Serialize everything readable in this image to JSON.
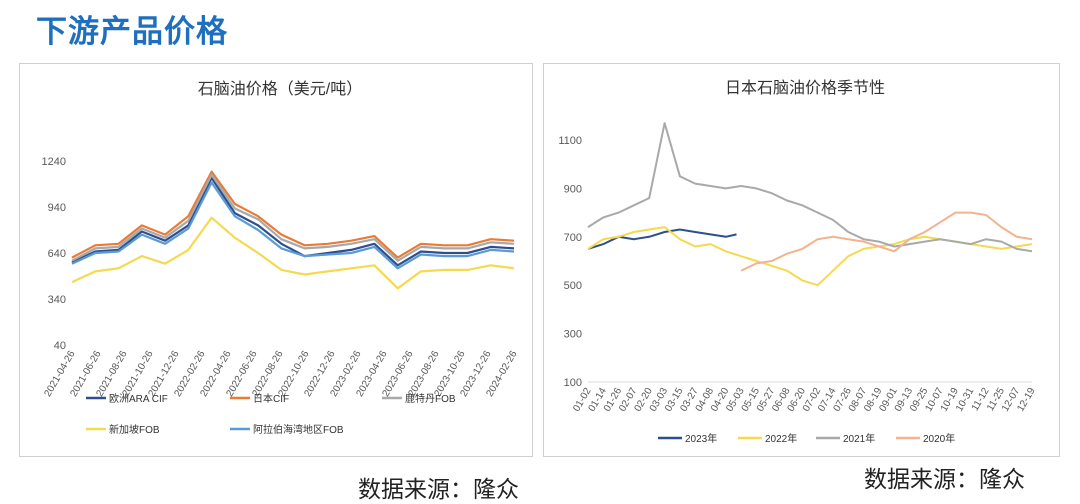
{
  "page": {
    "title": "下游产品价格",
    "source_left": "数据来源：隆众",
    "source_right": "数据来源：隆众"
  },
  "chart_data": [
    {
      "type": "line",
      "title": "石脑油价格（美元/吨）",
      "xlabel": "",
      "ylabel": "",
      "ylim": [
        40,
        1240
      ],
      "yticks": [
        40,
        340,
        640,
        940,
        1240
      ],
      "x_ticks": [
        "2021-04-26",
        "2021-06-26",
        "2021-08-26",
        "2021-10-26",
        "2021-12-26",
        "2022-02-26",
        "2022-04-26",
        "2022-06-26",
        "2022-08-26",
        "2022-10-26",
        "2022-12-26",
        "2023-02-26",
        "2023-04-26",
        "2023-06-26",
        "2023-08-26",
        "2023-10-26",
        "2023-12-26",
        "2024-02-26"
      ],
      "x": [
        "2021-04-26",
        "2021-06-26",
        "2021-08-26",
        "2021-10-26",
        "2021-12-26",
        "2022-02-26",
        "2022-03-10",
        "2022-04-26",
        "2022-06-26",
        "2022-08-26",
        "2022-10-26",
        "2022-12-26",
        "2023-02-26",
        "2023-04-26",
        "2023-06-26",
        "2023-08-26",
        "2023-10-26",
        "2023-12-26",
        "2024-02-26",
        "2024-04-26"
      ],
      "grid": false,
      "legend_position": "bottom",
      "series": [
        {
          "name": "欧洲ARA CIF",
          "color": "#2e4f8f",
          "values": [
            580,
            650,
            660,
            780,
            720,
            820,
            1130,
            900,
            820,
            700,
            620,
            640,
            660,
            700,
            560,
            650,
            640,
            640,
            680,
            670
          ]
        },
        {
          "name": "日本CIF",
          "color": "#e97b35",
          "values": [
            610,
            690,
            700,
            820,
            760,
            880,
            1170,
            960,
            880,
            760,
            690,
            700,
            720,
            750,
            610,
            700,
            690,
            690,
            730,
            720
          ]
        },
        {
          "name": "鹿特丹FOB",
          "color": "#a9a9a9",
          "values": [
            590,
            670,
            680,
            800,
            740,
            850,
            1150,
            930,
            860,
            730,
            670,
            680,
            700,
            730,
            590,
            680,
            670,
            670,
            710,
            700
          ]
        },
        {
          "name": "新加坡FOB",
          "color": "#f5d94e",
          "values": [
            450,
            520,
            540,
            620,
            570,
            660,
            870,
            740,
            640,
            530,
            500,
            520,
            540,
            560,
            410,
            520,
            530,
            530,
            560,
            540
          ]
        },
        {
          "name": "阿拉伯海湾地区FOB",
          "color": "#5b9bd5",
          "values": [
            570,
            640,
            650,
            760,
            700,
            800,
            1100,
            880,
            790,
            670,
            620,
            630,
            640,
            680,
            540,
            630,
            620,
            620,
            660,
            650
          ]
        }
      ]
    },
    {
      "type": "line",
      "title": "日本石脑油价格季节性",
      "xlabel": "",
      "ylabel": "",
      "ylim": [
        100,
        1100
      ],
      "yticks": [
        100,
        300,
        500,
        700,
        900,
        1100
      ],
      "x_ticks": [
        "01-02",
        "01-14",
        "01-26",
        "02-07",
        "02-20",
        "03-03",
        "03-15",
        "03-27",
        "04-08",
        "04-20",
        "05-03",
        "05-15",
        "05-27",
        "06-08",
        "06-20",
        "07-02",
        "07-14",
        "07-26",
        "08-07",
        "08-19",
        "09-01",
        "09-13",
        "09-25",
        "10-07",
        "10-19",
        "10-31",
        "11-12",
        "11-25",
        "12-07",
        "12-19"
      ],
      "grid": false,
      "legend_position": "bottom",
      "series": [
        {
          "name": "2023年",
          "color": "#2e4f8f",
          "x_index": [
            0,
            1,
            2,
            3,
            4,
            5,
            6,
            7,
            8,
            9,
            9.7
          ],
          "values": [
            650,
            670,
            700,
            690,
            700,
            720,
            730,
            720,
            710,
            700,
            710
          ]
        },
        {
          "name": "2022年",
          "color": "#f5d94e",
          "x_index": [
            0,
            1,
            2,
            3,
            4,
            5,
            6,
            7,
            8,
            9,
            10,
            11,
            12,
            13,
            14,
            15,
            16,
            17,
            18,
            19,
            20,
            21,
            22,
            23,
            24,
            25,
            26,
            27,
            28,
            29
          ],
          "values": [
            650,
            690,
            700,
            720,
            730,
            740,
            690,
            660,
            670,
            640,
            620,
            600,
            580,
            560,
            520,
            500,
            560,
            620,
            650,
            660,
            670,
            690,
            700,
            690,
            680,
            670,
            660,
            650,
            660,
            670
          ]
        },
        {
          "name": "2021年",
          "color": "#a9a9a9",
          "x_index": [
            0,
            1,
            2,
            3,
            4,
            5,
            6,
            7,
            8,
            9,
            10,
            11,
            12,
            13,
            14,
            15,
            16,
            17,
            18,
            19,
            20,
            21,
            22,
            23,
            24,
            25,
            26,
            27,
            28,
            29
          ],
          "values": [
            740,
            780,
            800,
            830,
            860,
            1170,
            950,
            920,
            910,
            900,
            910,
            900,
            880,
            850,
            830,
            800,
            770,
            720,
            690,
            680,
            660,
            670,
            680,
            690,
            680,
            670,
            690,
            680,
            650,
            640
          ]
        },
        {
          "name": "2020年",
          "color": "#f2b38e",
          "x_index": [
            10,
            11,
            12,
            13,
            14,
            15,
            16,
            17,
            18,
            19,
            20,
            21,
            22,
            23,
            24,
            25,
            26,
            27,
            28,
            29
          ],
          "values": [
            560,
            590,
            600,
            630,
            650,
            690,
            700,
            690,
            680,
            660,
            640,
            690,
            720,
            760,
            800,
            800,
            790,
            740,
            700,
            690
          ]
        }
      ]
    }
  ]
}
